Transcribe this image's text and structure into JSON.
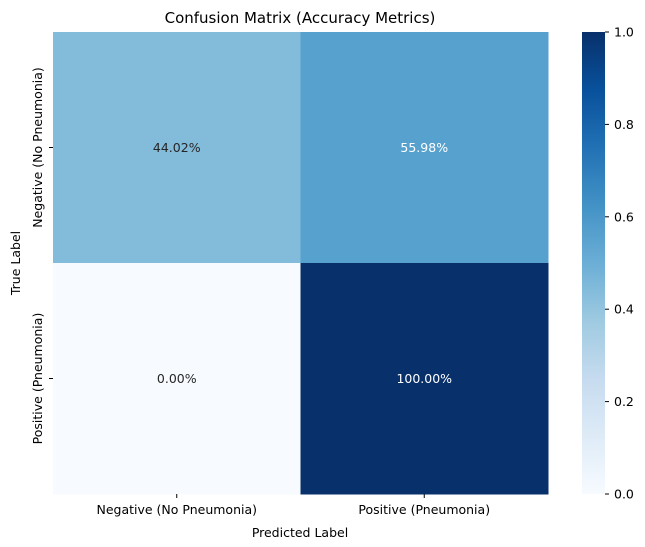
{
  "chart_data": {
    "type": "heatmap",
    "title": "Confusion Matrix (Accuracy Metrics)",
    "xlabel": "Predicted Label",
    "ylabel": "True Label",
    "x_categories": [
      "Negative (No Pneumonia)",
      "Positive (Pneumonia)"
    ],
    "y_categories": [
      "Negative (No Pneumonia)",
      "Positive (Pneumonia)"
    ],
    "values": [
      [
        0.4402,
        0.5598
      ],
      [
        0.0,
        1.0
      ]
    ],
    "annotations": [
      [
        "44.02%",
        "55.98%"
      ],
      [
        "0.00%",
        "100.00%"
      ]
    ],
    "colormap": "Blues",
    "colorbar": {
      "range": [
        0.0,
        1.0
      ],
      "ticks": [
        0.0,
        0.2,
        0.4,
        0.6,
        0.8,
        1.0
      ],
      "tick_labels": [
        "0.0",
        "0.2",
        "0.4",
        "0.6",
        "0.8",
        "1.0"
      ]
    }
  }
}
